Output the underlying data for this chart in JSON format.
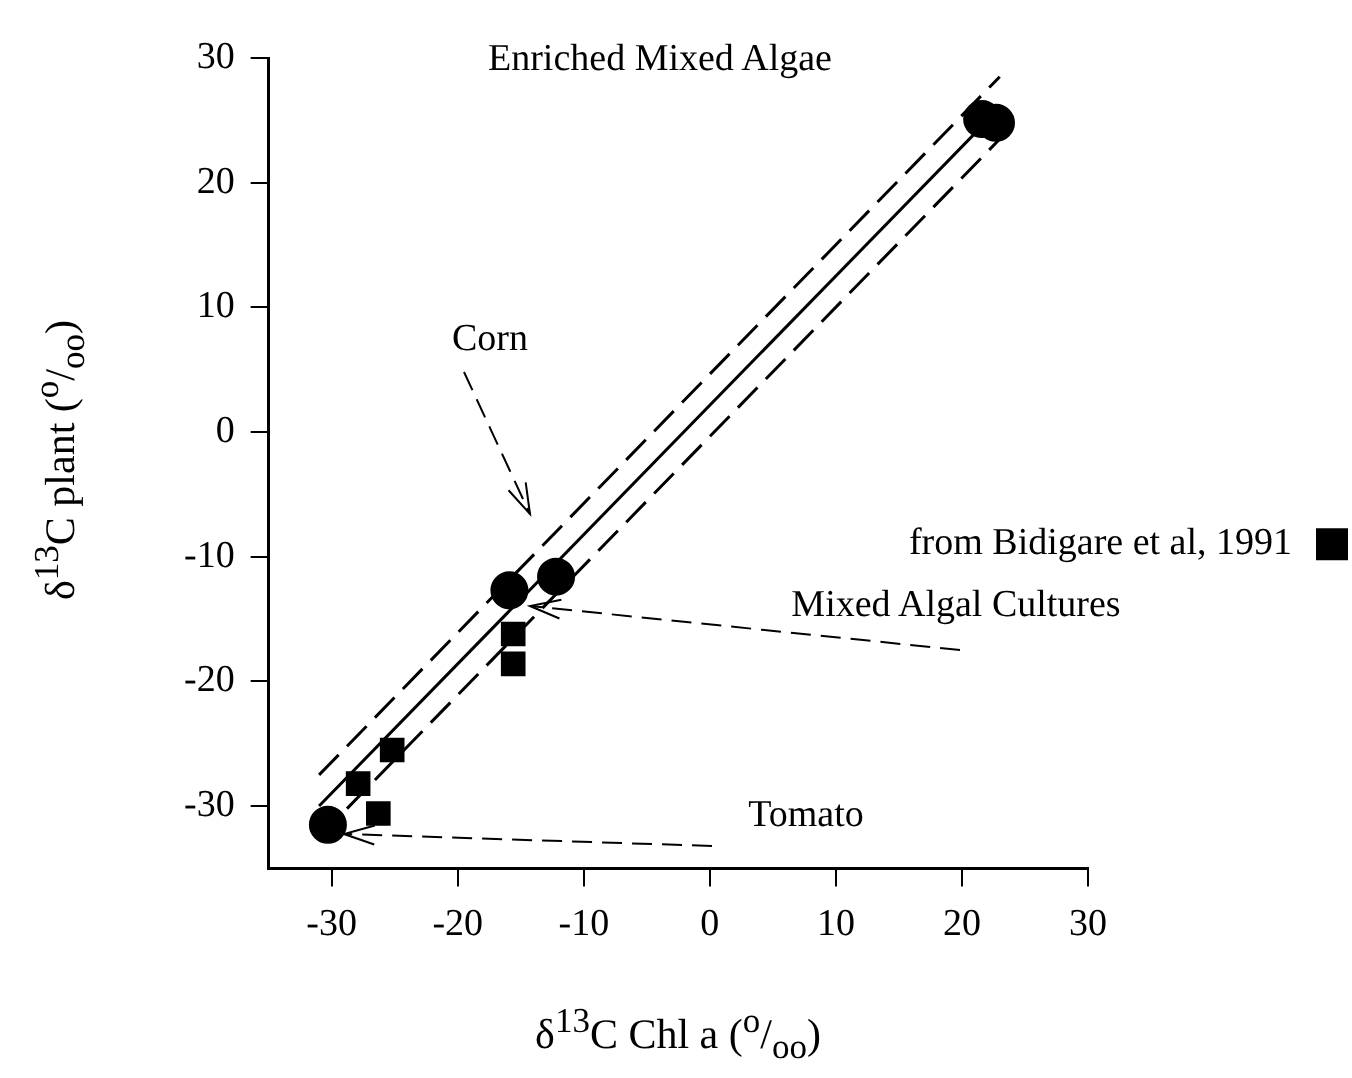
{
  "chart_data": {
    "type": "scatter",
    "xlabel": "δ$^{13}$C Chl a ($^{o}$/$_{oo}$)",
    "ylabel": "δ$^{13}$C plant ($^{o}$/$_{oo}$)",
    "xlim": [
      -35,
      30
    ],
    "xticks": [
      -30,
      -20,
      -10,
      0,
      10,
      20,
      30
    ],
    "ylim": [
      -35,
      30
    ],
    "yticks": [
      -30,
      -20,
      -10,
      0,
      10,
      20,
      30
    ],
    "grid": false,
    "legend": "right",
    "series": [
      {
        "marker": "circle",
        "color": "#000000",
        "x": [
          -30.3,
          -15.9,
          -12.2,
          21.6,
          22.7
        ],
        "values": [
          -31.5,
          -12.7,
          -11.6,
          25.1,
          24.8
        ]
      },
      {
        "marker": "square",
        "name": "from Bidigare et al, 1991",
        "color": "#000000",
        "x": [
          -25.2,
          -27.9,
          -26.3,
          -15.6,
          -15.6
        ],
        "values": [
          -25.5,
          -28.2,
          -30.6,
          -16.2,
          -18.6
        ]
      },
      {
        "type": "line",
        "marker": "none",
        "line_style": "solid",
        "color": "#000000",
        "x": [
          -31,
          23
        ],
        "values": [
          -30,
          26
        ]
      },
      {
        "type": "line",
        "marker": "none",
        "line_style": "dashed",
        "color": "#000000",
        "x": [
          -31,
          23
        ],
        "values": [
          -27.5,
          28.5
        ]
      },
      {
        "type": "line",
        "marker": "none",
        "line_style": "dashed",
        "color": "#000000",
        "x": [
          -31,
          23
        ],
        "values": [
          -32.5,
          23.5
        ]
      }
    ],
    "annotations": [
      "Enriched Mixed Algae",
      "Corn",
      "Mixed Algal Cultures",
      "Tomato"
    ]
  }
}
